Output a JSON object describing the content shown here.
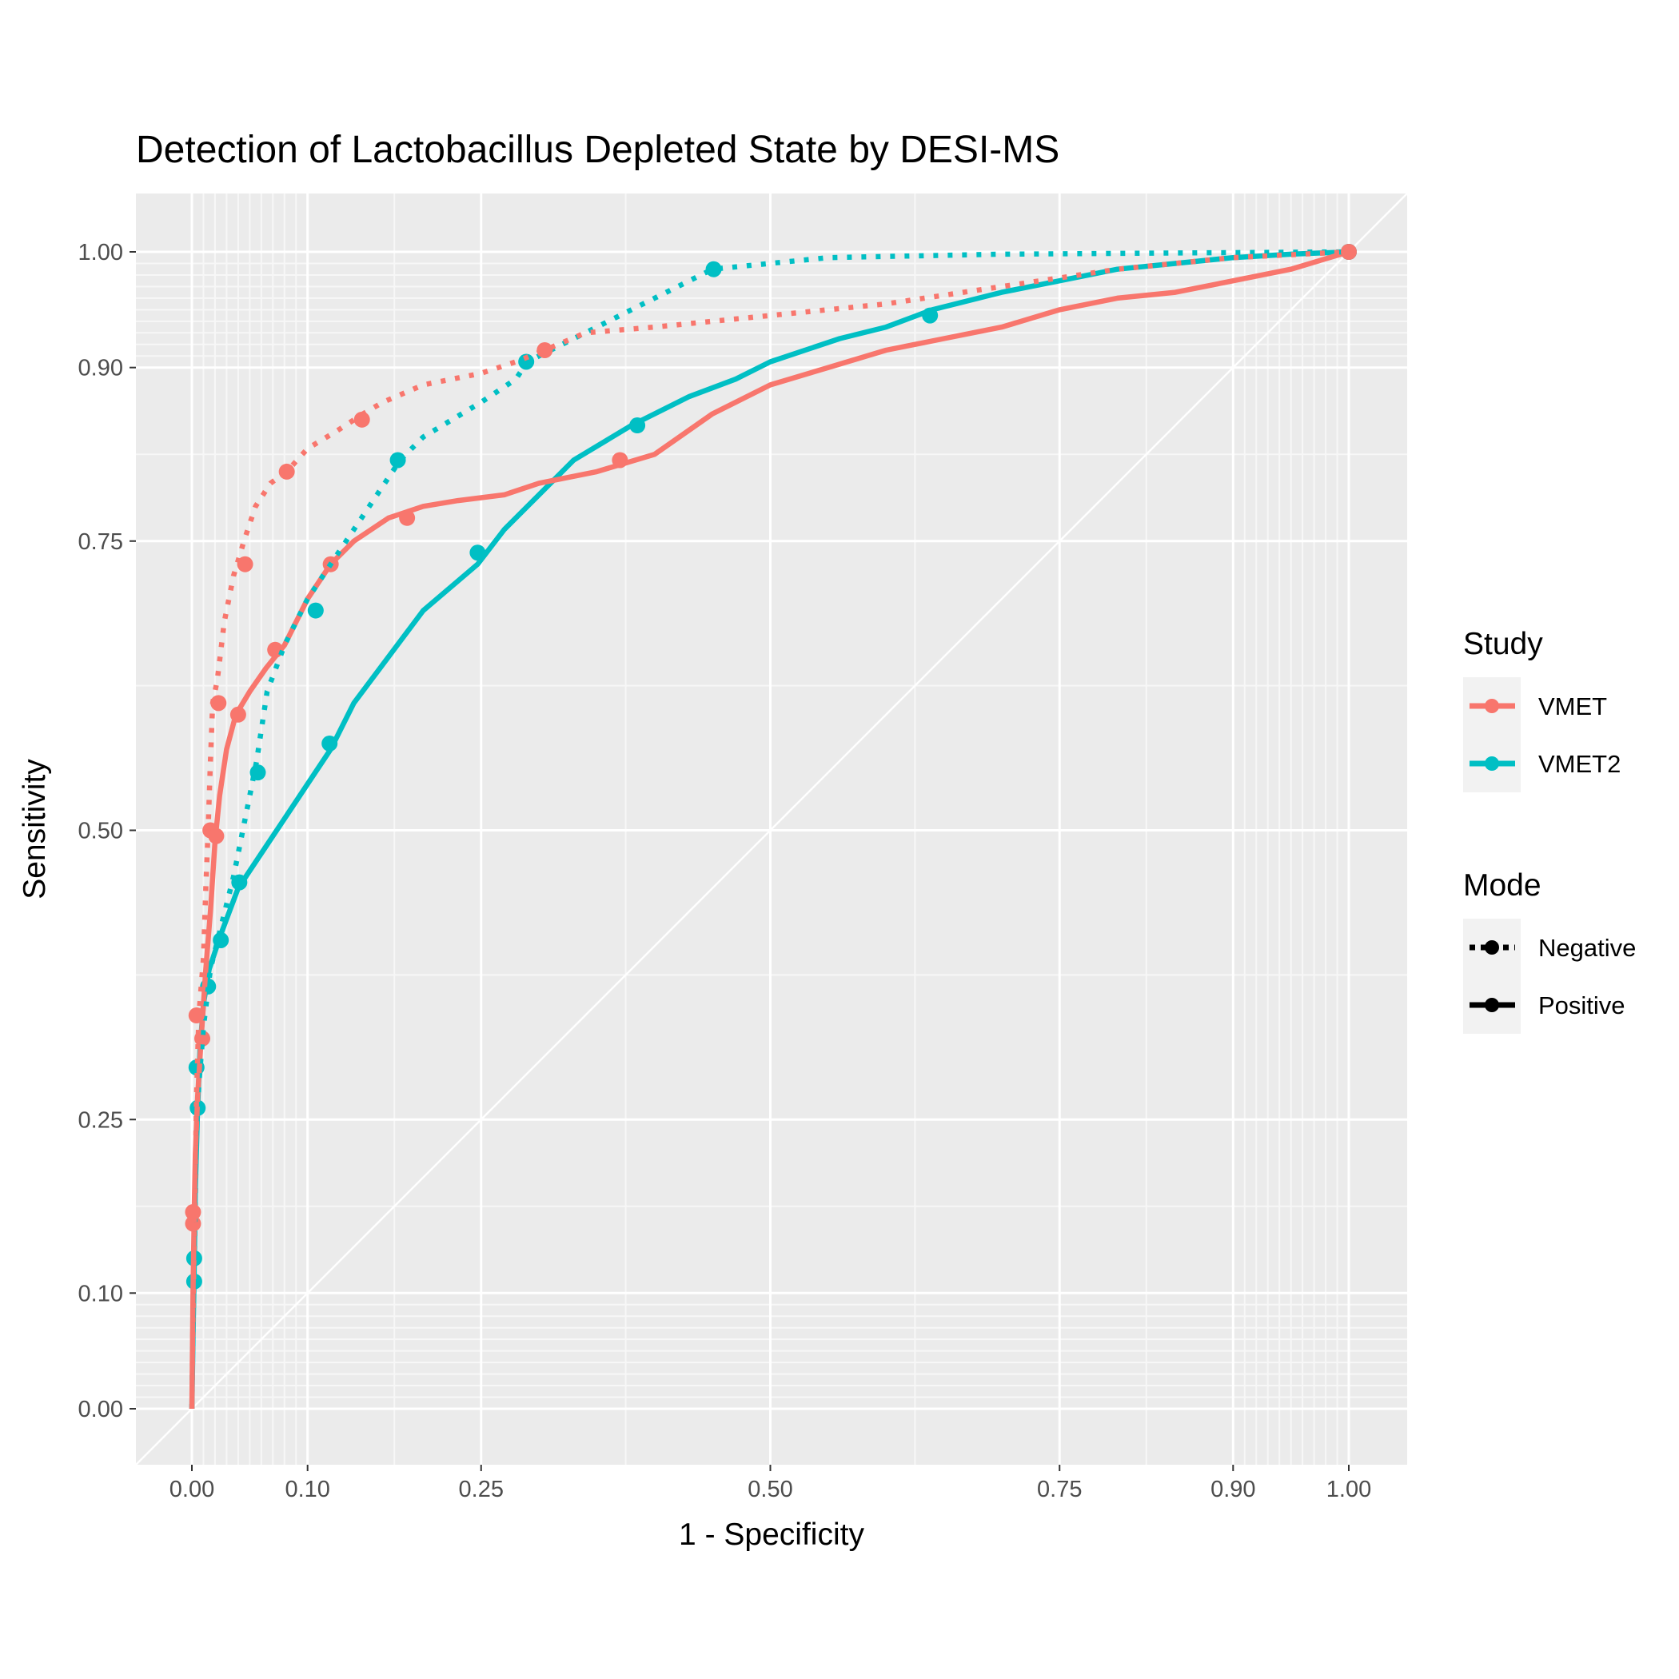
{
  "chart_data": {
    "type": "line",
    "title": "Detection of Lactobacillus Depleted State by DESI-MS",
    "xlabel": "1 - Specificity",
    "ylabel": "Sensitivity",
    "xlim": [
      0,
      1
    ],
    "ylim": [
      0,
      1
    ],
    "x_ticks": [
      0,
      0.1,
      0.25,
      0.5,
      0.75,
      0.9,
      1
    ],
    "x_tick_labels": [
      "0.00",
      "0.10",
      "0.25",
      "0.50",
      "0.75",
      "0.90",
      "1.00"
    ],
    "y_ticks": [
      0,
      0.1,
      0.25,
      0.5,
      0.75,
      0.9,
      1
    ],
    "y_tick_labels": [
      "0.00",
      "0.10",
      "0.25",
      "0.50",
      "0.75",
      "0.90",
      "1.00"
    ],
    "grid": true,
    "diagonal_reference": true,
    "legend_position": "right",
    "legend": {
      "study_title": "Study",
      "study_items": [
        {
          "label": "VMET",
          "color": "#F8766D"
        },
        {
          "label": "VMET2",
          "color": "#00BFC4"
        }
      ],
      "mode_title": "Mode",
      "mode_items": [
        {
          "label": "Negative",
          "line": "dotted"
        },
        {
          "label": "Positive",
          "line": "solid"
        }
      ]
    },
    "series": [
      {
        "study": "VMET",
        "mode": "Negative",
        "color": "#F8766D",
        "line": "dotted",
        "points": [
          [
            0,
            0
          ],
          [
            0.001,
            0.08
          ],
          [
            0.002,
            0.15
          ],
          [
            0.004,
            0.27
          ],
          [
            0.006,
            0.34
          ],
          [
            0.01,
            0.39
          ],
          [
            0.012,
            0.45
          ],
          [
            0.014,
            0.5
          ],
          [
            0.016,
            0.56
          ],
          [
            0.018,
            0.61
          ],
          [
            0.022,
            0.63
          ],
          [
            0.028,
            0.68
          ],
          [
            0.036,
            0.72
          ],
          [
            0.045,
            0.75
          ],
          [
            0.055,
            0.78
          ],
          [
            0.068,
            0.8
          ],
          [
            0.082,
            0.81
          ],
          [
            0.1,
            0.83
          ],
          [
            0.125,
            0.845
          ],
          [
            0.148,
            0.86
          ],
          [
            0.165,
            0.87
          ],
          [
            0.2,
            0.885
          ],
          [
            0.25,
            0.895
          ],
          [
            0.28,
            0.905
          ],
          [
            0.305,
            0.915
          ],
          [
            0.34,
            0.93
          ],
          [
            0.4,
            0.935
          ],
          [
            0.5,
            0.945
          ],
          [
            0.6,
            0.955
          ],
          [
            0.7,
            0.97
          ],
          [
            0.8,
            0.985
          ],
          [
            0.9,
            0.995
          ],
          [
            1,
            1
          ]
        ],
        "markers": [
          [
            0.001,
            0.17
          ],
          [
            0.004,
            0.34
          ],
          [
            0.023,
            0.61
          ],
          [
            0.046,
            0.73
          ],
          [
            0.082,
            0.81
          ],
          [
            0.147,
            0.855
          ],
          [
            0.305,
            0.915
          ],
          [
            1,
            1
          ]
        ]
      },
      {
        "study": "VMET",
        "mode": "Positive",
        "color": "#F8766D",
        "line": "solid",
        "points": [
          [
            0,
            0
          ],
          [
            0.001,
            0.1
          ],
          [
            0.002,
            0.17
          ],
          [
            0.003,
            0.22
          ],
          [
            0.005,
            0.27
          ],
          [
            0.008,
            0.32
          ],
          [
            0.012,
            0.38
          ],
          [
            0.016,
            0.43
          ],
          [
            0.02,
            0.49
          ],
          [
            0.024,
            0.53
          ],
          [
            0.03,
            0.57
          ],
          [
            0.038,
            0.6
          ],
          [
            0.05,
            0.62
          ],
          [
            0.064,
            0.64
          ],
          [
            0.08,
            0.66
          ],
          [
            0.1,
            0.7
          ],
          [
            0.12,
            0.73
          ],
          [
            0.14,
            0.75
          ],
          [
            0.17,
            0.77
          ],
          [
            0.2,
            0.78
          ],
          [
            0.23,
            0.785
          ],
          [
            0.27,
            0.79
          ],
          [
            0.3,
            0.8
          ],
          [
            0.35,
            0.81
          ],
          [
            0.4,
            0.825
          ],
          [
            0.45,
            0.86
          ],
          [
            0.5,
            0.885
          ],
          [
            0.55,
            0.9
          ],
          [
            0.6,
            0.915
          ],
          [
            0.65,
            0.925
          ],
          [
            0.7,
            0.935
          ],
          [
            0.75,
            0.95
          ],
          [
            0.8,
            0.96
          ],
          [
            0.85,
            0.965
          ],
          [
            0.9,
            0.975
          ],
          [
            0.95,
            0.985
          ],
          [
            1,
            1
          ]
        ],
        "markers": [
          [
            0.001,
            0.16
          ],
          [
            0.009,
            0.32
          ],
          [
            0.016,
            0.5
          ],
          [
            0.021,
            0.495
          ],
          [
            0.04,
            0.6
          ],
          [
            0.072,
            0.656
          ],
          [
            0.12,
            0.73
          ],
          [
            0.186,
            0.77
          ],
          [
            0.37,
            0.82
          ],
          [
            1,
            1
          ]
        ]
      },
      {
        "study": "VMET2",
        "mode": "Negative",
        "color": "#00BFC4",
        "line": "dotted",
        "points": [
          [
            0,
            0
          ],
          [
            0.001,
            0.07
          ],
          [
            0.002,
            0.12
          ],
          [
            0.003,
            0.18
          ],
          [
            0.004,
            0.24
          ],
          [
            0.006,
            0.28
          ],
          [
            0.01,
            0.33
          ],
          [
            0.016,
            0.38
          ],
          [
            0.026,
            0.42
          ],
          [
            0.036,
            0.46
          ],
          [
            0.044,
            0.5
          ],
          [
            0.05,
            0.53
          ],
          [
            0.056,
            0.56
          ],
          [
            0.065,
            0.62
          ],
          [
            0.08,
            0.66
          ],
          [
            0.1,
            0.7
          ],
          [
            0.12,
            0.73
          ],
          [
            0.14,
            0.76
          ],
          [
            0.16,
            0.79
          ],
          [
            0.18,
            0.82
          ],
          [
            0.2,
            0.84
          ],
          [
            0.25,
            0.87
          ],
          [
            0.28,
            0.89
          ],
          [
            0.29,
            0.905
          ],
          [
            0.34,
            0.93
          ],
          [
            0.4,
            0.96
          ],
          [
            0.45,
            0.985
          ],
          [
            0.55,
            0.995
          ],
          [
            0.7,
            0.998
          ],
          [
            1,
            1
          ]
        ],
        "markers": [
          [
            0.057,
            0.55
          ],
          [
            0.107,
            0.69
          ],
          [
            0.178,
            0.82
          ],
          [
            0.289,
            0.905
          ],
          [
            0.451,
            0.985
          ],
          [
            1,
            1
          ]
        ]
      },
      {
        "study": "VMET2",
        "mode": "Positive",
        "color": "#00BFC4",
        "line": "solid",
        "points": [
          [
            0,
            0
          ],
          [
            0.001,
            0.06
          ],
          [
            0.002,
            0.12
          ],
          [
            0.003,
            0.19
          ],
          [
            0.005,
            0.26
          ],
          [
            0.007,
            0.31
          ],
          [
            0.01,
            0.35
          ],
          [
            0.015,
            0.38
          ],
          [
            0.025,
            0.41
          ],
          [
            0.04,
            0.45
          ],
          [
            0.06,
            0.48
          ],
          [
            0.08,
            0.51
          ],
          [
            0.1,
            0.54
          ],
          [
            0.12,
            0.57
          ],
          [
            0.14,
            0.61
          ],
          [
            0.17,
            0.65
          ],
          [
            0.2,
            0.69
          ],
          [
            0.247,
            0.73
          ],
          [
            0.27,
            0.76
          ],
          [
            0.3,
            0.79
          ],
          [
            0.33,
            0.82
          ],
          [
            0.38,
            0.85
          ],
          [
            0.43,
            0.875
          ],
          [
            0.47,
            0.89
          ],
          [
            0.5,
            0.905
          ],
          [
            0.56,
            0.925
          ],
          [
            0.6,
            0.935
          ],
          [
            0.64,
            0.95
          ],
          [
            0.7,
            0.965
          ],
          [
            0.75,
            0.975
          ],
          [
            0.8,
            0.985
          ],
          [
            0.85,
            0.99
          ],
          [
            0.9,
            0.995
          ],
          [
            0.95,
            0.998
          ],
          [
            1,
            1
          ]
        ],
        "markers": [
          [
            0.002,
            0.11
          ],
          [
            0.002,
            0.13
          ],
          [
            0.005,
            0.26
          ],
          [
            0.004,
            0.295
          ],
          [
            0.014,
            0.365
          ],
          [
            0.025,
            0.405
          ],
          [
            0.041,
            0.455
          ],
          [
            0.119,
            0.575
          ],
          [
            0.247,
            0.74
          ],
          [
            0.385,
            0.85
          ],
          [
            0.638,
            0.945
          ],
          [
            1,
            1
          ]
        ]
      }
    ]
  }
}
